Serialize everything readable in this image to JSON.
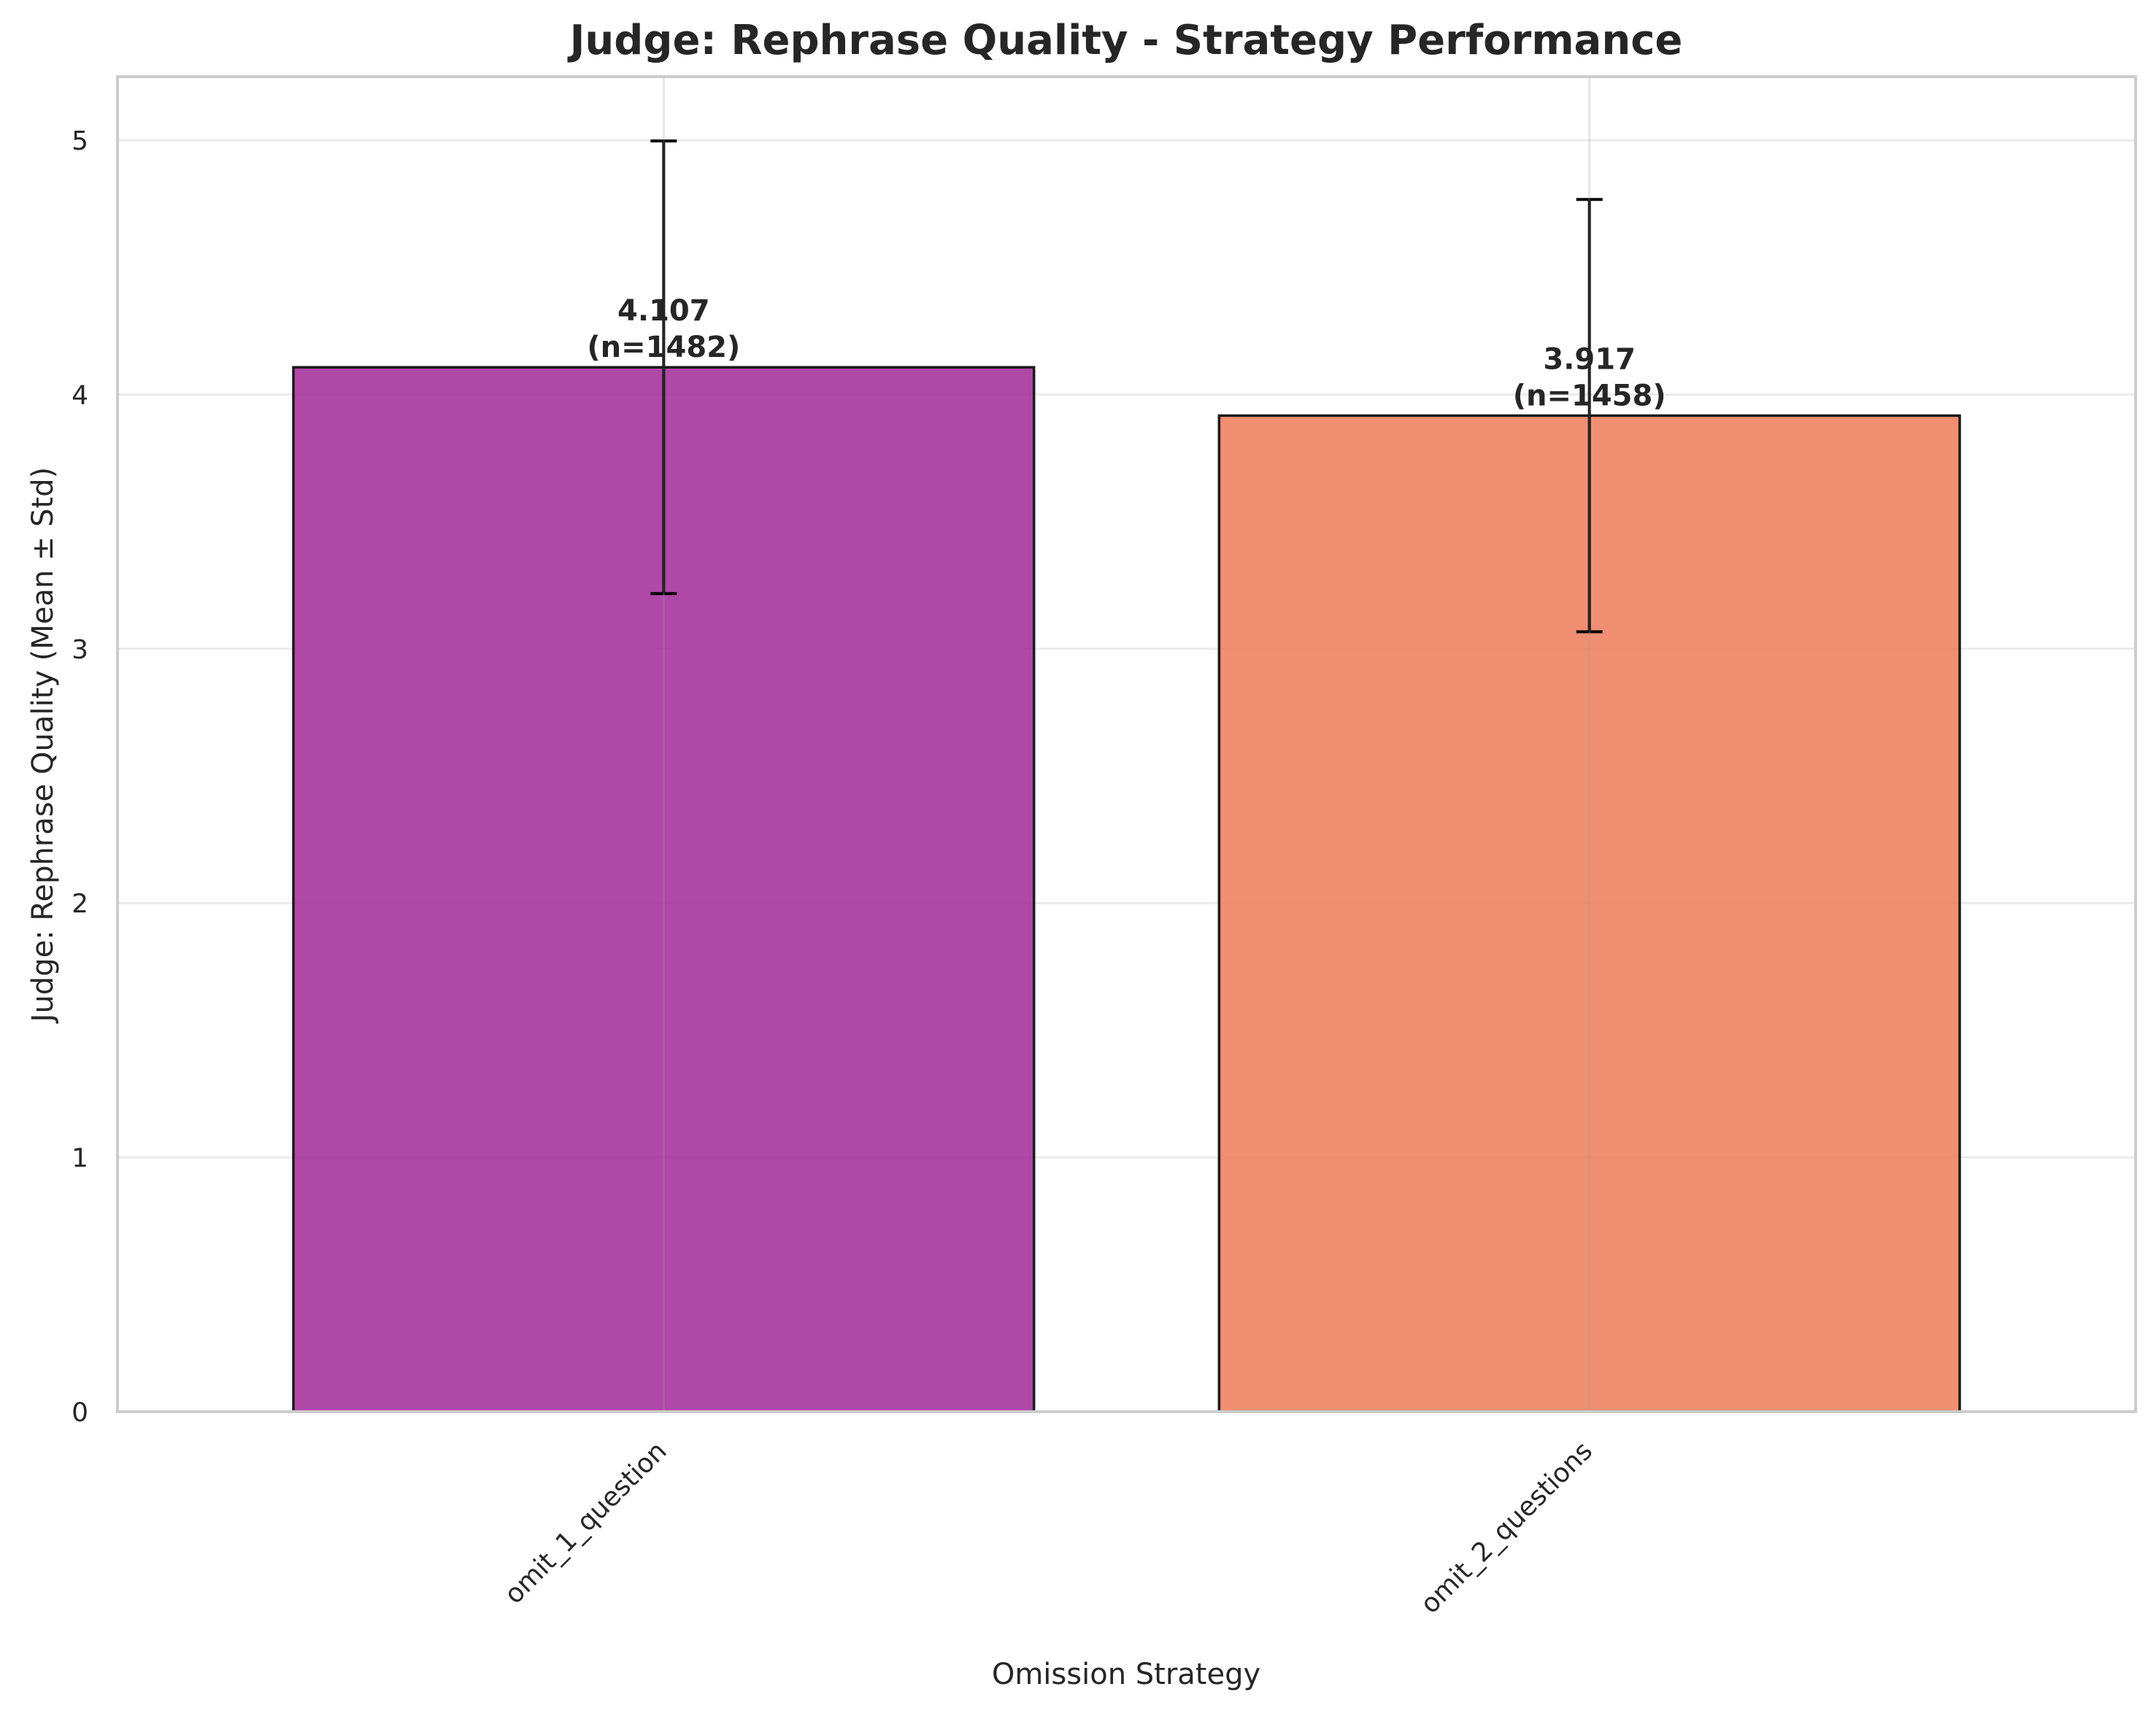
{
  "chart_data": {
    "type": "bar",
    "title": "Judge: Rephrase Quality - Strategy Performance",
    "xlabel": "Omission Strategy",
    "ylabel": "Judge: Rephrase Quality (Mean ± Std)",
    "categories": [
      "omit_1_question",
      "omit_2_questions"
    ],
    "values": [
      4.107,
      3.917
    ],
    "std": [
      0.89,
      0.85
    ],
    "n": [
      1482,
      1458
    ],
    "value_labels": [
      "4.107",
      "3.917"
    ],
    "n_labels": [
      "(n=1482)",
      "(n=1458)"
    ],
    "colors": [
      "#a7349f",
      "#ee8363"
    ],
    "edge_color": "#1a1a1a",
    "ylim": [
      0,
      5.25
    ],
    "yticks": [
      0,
      1,
      2,
      3,
      4,
      5
    ],
    "ytick_labels": [
      "0",
      "1",
      "2",
      "3",
      "4",
      "5"
    ],
    "grid": true
  }
}
